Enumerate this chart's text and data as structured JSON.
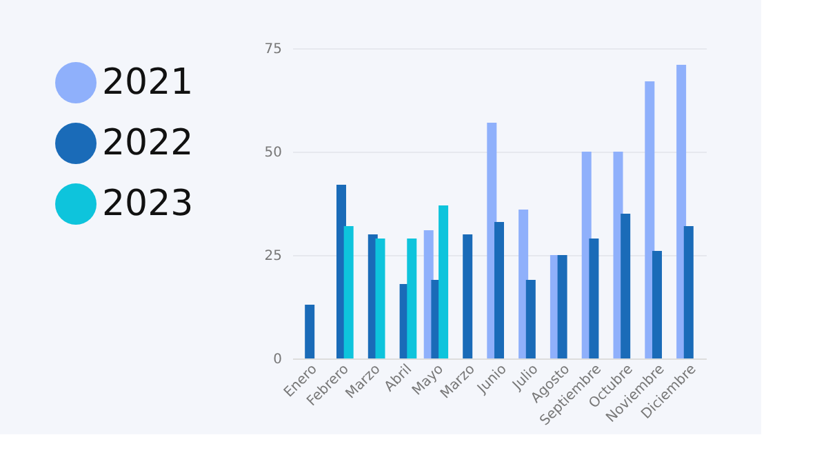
{
  "chart_data": {
    "type": "bar",
    "categories": [
      "Enero",
      "Febrero",
      "Marzo",
      "Abril",
      "Mayo",
      "Marzo",
      "Junio",
      "Julio",
      "Agosto",
      "Septiembre",
      "Octubre",
      "Noviembre",
      "Diciembre"
    ],
    "series": [
      {
        "name": "2021",
        "color": "#8fb0fb",
        "values": [
          null,
          null,
          null,
          null,
          31,
          null,
          57,
          36,
          25,
          50,
          50,
          67,
          71
        ]
      },
      {
        "name": "2022",
        "color": "#1a6bb8",
        "values": [
          13,
          42,
          30,
          18,
          19,
          30,
          33,
          19,
          25,
          29,
          35,
          26,
          32
        ]
      },
      {
        "name": "2023",
        "color": "#0ec4dc",
        "values": [
          null,
          32,
          29,
          29,
          37,
          null,
          null,
          null,
          null,
          null,
          null,
          null,
          null
        ]
      }
    ],
    "ylim": [
      0,
      75
    ],
    "yticks": [
      0,
      25,
      50,
      75
    ],
    "grid": "y",
    "legend": "left"
  }
}
